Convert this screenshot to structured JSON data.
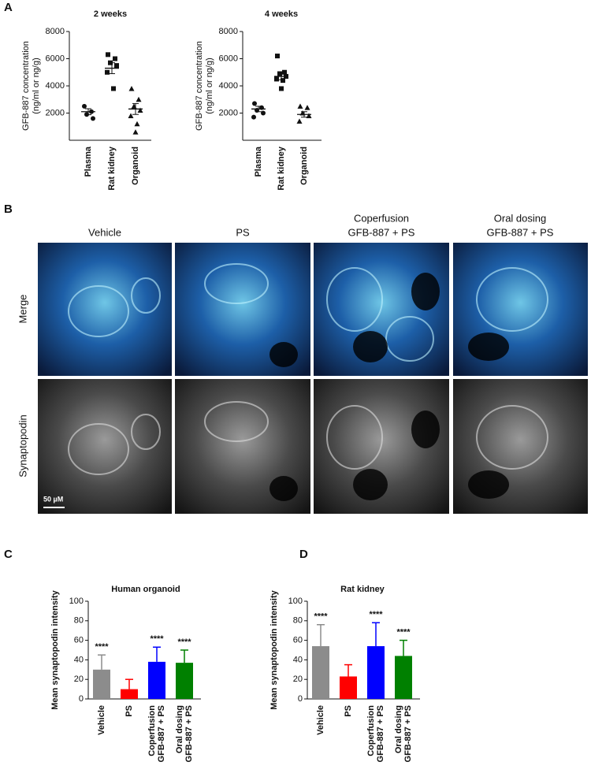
{
  "panels": [
    "A",
    "B",
    "C",
    "D"
  ],
  "images": {
    "columns": [
      [
        "Vehicle"
      ],
      [
        "PS"
      ],
      [
        "Coperfusion",
        "GFB-887 + PS"
      ],
      [
        "Oral dosing",
        "GFB-887 + PS"
      ]
    ],
    "rows": [
      "Merge",
      "Synaptopodin"
    ],
    "scale_bar": "50 µM"
  },
  "chart_data": [
    {
      "type": "dot",
      "title": "2 weeks",
      "ylabel": [
        "GFB-887 concentration",
        "(ng/ml or ng/g)"
      ],
      "categories": [
        [
          "Plasma"
        ],
        [
          "Rat kidney"
        ],
        [
          "Organoid"
        ]
      ],
      "markers": [
        "circle",
        "square",
        "triangle"
      ],
      "points": [
        [
          2500,
          2100,
          1900,
          1600
        ],
        [
          6300,
          6000,
          5700,
          5500,
          5000,
          3800
        ],
        [
          3800,
          3000,
          2500,
          2200,
          1800,
          1200,
          600
        ]
      ],
      "means": [
        2100,
        5300,
        2300
      ],
      "errors": [
        220,
        400,
        400
      ],
      "ylim": [
        0,
        8000
      ],
      "yticks": [
        2000,
        4000,
        6000,
        8000
      ],
      "color": "#111111"
    },
    {
      "type": "dot",
      "title": "4 weeks",
      "ylabel": [
        "GFB-887 concentration",
        "(ng/ml or ng/g)"
      ],
      "categories": [
        [
          "Plasma"
        ],
        [
          "Rat kidney"
        ],
        [
          "Organoid"
        ]
      ],
      "markers": [
        "circle",
        "square",
        "triangle"
      ],
      "points": [
        [
          2700,
          2400,
          2200,
          2000,
          1700
        ],
        [
          6200,
          5000,
          4900,
          4700,
          4500,
          4400,
          3800
        ],
        [
          2500,
          2400,
          2000,
          1800,
          1400
        ]
      ],
      "means": [
        2300,
        4700,
        1900
      ],
      "errors": [
        200,
        250,
        200
      ],
      "ylim": [
        0,
        8000
      ],
      "yticks": [
        2000,
        4000,
        6000,
        8000
      ],
      "color": "#111111"
    },
    {
      "type": "bar",
      "title": "Human organoid",
      "ylabel": [
        "Mean synaptopodin intensity"
      ],
      "categories": [
        [
          "Vehicle"
        ],
        [
          "PS"
        ],
        [
          "Coperfusion",
          "GFB-887 + PS"
        ],
        [
          "Oral dosing",
          "GFB-887 + PS"
        ]
      ],
      "values": [
        30,
        10,
        38,
        37
      ],
      "errors": [
        15,
        10,
        15,
        13
      ],
      "colors": [
        "#8c8c8c",
        "#ff0000",
        "#0000ff",
        "#008000"
      ],
      "annotations": [
        "****",
        null,
        "****",
        "****"
      ],
      "ylim": [
        0,
        100
      ],
      "yticks": [
        0,
        20,
        40,
        60,
        80,
        100
      ]
    },
    {
      "type": "bar",
      "title": "Rat kidney",
      "ylabel": [
        "Mean synaptopodin intensity"
      ],
      "categories": [
        [
          "Vehicle"
        ],
        [
          "PS"
        ],
        [
          "Coperfusion",
          "GFB-887 + PS"
        ],
        [
          "Oral dosing",
          "GFB-887 + PS"
        ]
      ],
      "values": [
        54,
        23,
        54,
        44
      ],
      "errors": [
        22,
        12,
        24,
        16
      ],
      "colors": [
        "#8c8c8c",
        "#ff0000",
        "#0000ff",
        "#008000"
      ],
      "annotations": [
        "****",
        null,
        "****",
        "****"
      ],
      "ylim": [
        0,
        100
      ],
      "yticks": [
        0,
        20,
        40,
        60,
        80,
        100
      ]
    }
  ]
}
